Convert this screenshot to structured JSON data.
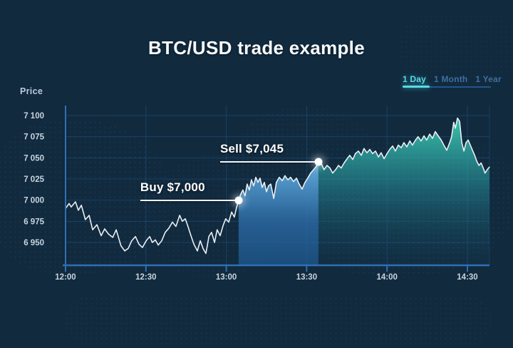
{
  "title": "BTC/USD trade example",
  "tabs": {
    "items": [
      {
        "label": "1 Day",
        "active": true
      },
      {
        "label": "1 Month",
        "active": false
      },
      {
        "label": "1 Year",
        "active": false
      }
    ]
  },
  "chart_data": {
    "type": "line",
    "title": "BTC/USD trade example",
    "y_axis_title": "Price",
    "pair": "BTC/USD",
    "x_ticks": [
      {
        "t": 0,
        "label": "12:00"
      },
      {
        "t": 30,
        "label": "12:30"
      },
      {
        "t": 60,
        "label": "13:00"
      },
      {
        "t": 90,
        "label": "13:30"
      },
      {
        "t": 120,
        "label": "14:00"
      },
      {
        "t": 150,
        "label": "14:30"
      }
    ],
    "y_ticks": [
      {
        "value": 7100,
        "label": "7 100"
      },
      {
        "value": 7075,
        "label": "7 075"
      },
      {
        "value": 7050,
        "label": "7 050"
      },
      {
        "value": 7025,
        "label": "7 025"
      },
      {
        "value": 7000,
        "label": "7 000"
      },
      {
        "value": 6975,
        "label": "6 975"
      },
      {
        "value": 6950,
        "label": "6 950"
      }
    ],
    "ylim": [
      6923,
      7115
    ],
    "xlim_minutes_after_12": [
      0,
      158.2
    ],
    "grid": true,
    "legend": "none",
    "markers": {
      "buy": {
        "t": 64.6,
        "price": 7000,
        "label": "Buy $7,000"
      },
      "sell": {
        "t": 94.4,
        "price": 7045,
        "label": "Sell $7,045"
      }
    },
    "series": [
      {
        "name": "BTC/USD price",
        "points_t_price": [
          [
            0,
            6990
          ],
          [
            1.3,
            6996
          ],
          [
            2.1,
            6992
          ],
          [
            3.7,
            6998
          ],
          [
            4.8,
            6988
          ],
          [
            5.9,
            6994
          ],
          [
            7.4,
            6977
          ],
          [
            8.8,
            6982
          ],
          [
            10.1,
            6965
          ],
          [
            11.7,
            6971
          ],
          [
            13.3,
            6958
          ],
          [
            14.6,
            6966
          ],
          [
            16,
            6960
          ],
          [
            17.6,
            6956
          ],
          [
            18.9,
            6965
          ],
          [
            20.7,
            6946
          ],
          [
            22.1,
            6940
          ],
          [
            23.4,
            6943
          ],
          [
            24.7,
            6952
          ],
          [
            26.1,
            6957
          ],
          [
            27.4,
            6948
          ],
          [
            28.7,
            6944
          ],
          [
            30.1,
            6952
          ],
          [
            31.4,
            6957
          ],
          [
            32.4,
            6950
          ],
          [
            33.5,
            6953
          ],
          [
            34.6,
            6947
          ],
          [
            35.9,
            6952
          ],
          [
            37.2,
            6962
          ],
          [
            38.6,
            6967
          ],
          [
            39.9,
            6974
          ],
          [
            41.2,
            6969
          ],
          [
            42.6,
            6982
          ],
          [
            43.6,
            6975
          ],
          [
            44.7,
            6978
          ],
          [
            45.7,
            6969
          ],
          [
            46.8,
            6958
          ],
          [
            47.9,
            6948
          ],
          [
            49.2,
            6940
          ],
          [
            50.3,
            6952
          ],
          [
            51.3,
            6943
          ],
          [
            52.4,
            6937
          ],
          [
            53.5,
            6957
          ],
          [
            54.5,
            6962
          ],
          [
            55.6,
            6950
          ],
          [
            56.6,
            6965
          ],
          [
            57.7,
            6958
          ],
          [
            58.8,
            6970
          ],
          [
            59.8,
            6978
          ],
          [
            60.9,
            6974
          ],
          [
            62,
            6986
          ],
          [
            63,
            6980
          ],
          [
            63.8,
            6991
          ],
          [
            64.6,
            7000
          ],
          [
            65.4,
            7007
          ],
          [
            66.2,
            7012
          ],
          [
            67,
            7005
          ],
          [
            67.8,
            7019
          ],
          [
            68.6,
            7012
          ],
          [
            69.4,
            7024
          ],
          [
            70.2,
            7017
          ],
          [
            71,
            7027
          ],
          [
            71.8,
            7021
          ],
          [
            72.6,
            7026
          ],
          [
            73.4,
            7015
          ],
          [
            74.2,
            7021
          ],
          [
            75,
            7010
          ],
          [
            75.8,
            7017
          ],
          [
            76.6,
            7019
          ],
          [
            77.7,
            7002
          ],
          [
            78.7,
            7021
          ],
          [
            79.8,
            7027
          ],
          [
            80.9,
            7023
          ],
          [
            81.9,
            7029
          ],
          [
            83,
            7024
          ],
          [
            84,
            7027
          ],
          [
            85.1,
            7022
          ],
          [
            86.2,
            7026
          ],
          [
            87.2,
            7019
          ],
          [
            88.3,
            7013
          ],
          [
            89.4,
            7021
          ],
          [
            90.4,
            7026
          ],
          [
            91.5,
            7032
          ],
          [
            92.6,
            7036
          ],
          [
            93.6,
            7040
          ],
          [
            94.4,
            7045
          ],
          [
            95.5,
            7043
          ],
          [
            96.5,
            7036
          ],
          [
            97.6,
            7041
          ],
          [
            98.7,
            7038
          ],
          [
            99.7,
            7032
          ],
          [
            100.8,
            7036
          ],
          [
            101.9,
            7041
          ],
          [
            102.9,
            7038
          ],
          [
            104,
            7044
          ],
          [
            105.1,
            7049
          ],
          [
            106.1,
            7053
          ],
          [
            107.2,
            7048
          ],
          [
            108.2,
            7055
          ],
          [
            109.3,
            7058
          ],
          [
            110.4,
            7053
          ],
          [
            111.4,
            7061
          ],
          [
            112.5,
            7056
          ],
          [
            113.6,
            7060
          ],
          [
            114.6,
            7055
          ],
          [
            115.7,
            7058
          ],
          [
            116.8,
            7051
          ],
          [
            117.8,
            7056
          ],
          [
            118.9,
            7049
          ],
          [
            120,
            7055
          ],
          [
            121,
            7060
          ],
          [
            122.1,
            7064
          ],
          [
            123.1,
            7058
          ],
          [
            124.2,
            7065
          ],
          [
            125.3,
            7062
          ],
          [
            126.3,
            7068
          ],
          [
            127.4,
            7063
          ],
          [
            128.5,
            7070
          ],
          [
            129.5,
            7065
          ],
          [
            130.6,
            7071
          ],
          [
            131.6,
            7075
          ],
          [
            132.7,
            7070
          ],
          [
            133.8,
            7076
          ],
          [
            134.8,
            7071
          ],
          [
            135.9,
            7078
          ],
          [
            137,
            7073
          ],
          [
            138,
            7081
          ],
          [
            139.1,
            7076
          ],
          [
            140.2,
            7071
          ],
          [
            141.2,
            7065
          ],
          [
            142.3,
            7059
          ],
          [
            143.4,
            7068
          ],
          [
            144.1,
            7075
          ],
          [
            144.9,
            7092
          ],
          [
            145.5,
            7085
          ],
          [
            146.3,
            7097
          ],
          [
            147.1,
            7093
          ],
          [
            147.9,
            7068
          ],
          [
            148.7,
            7058
          ],
          [
            149.5,
            7068
          ],
          [
            150.3,
            7071
          ],
          [
            151.1,
            7065
          ],
          [
            151.9,
            7059
          ],
          [
            152.7,
            7053
          ],
          [
            153.5,
            7046
          ],
          [
            154.3,
            7041
          ],
          [
            155.1,
            7044
          ],
          [
            155.9,
            7038
          ],
          [
            156.6,
            7032
          ],
          [
            157.4,
            7036
          ],
          [
            158.2,
            7039
          ]
        ]
      }
    ],
    "colors": {
      "background": "#112a3e",
      "line": "#eaeff4",
      "fill_hold_top": "#62aee0",
      "fill_hold_bottom": "#1d5c94",
      "fill_profit_top": "#3ed2b4",
      "fill_profit_bottom": "#15445e",
      "grid": "#2b65a3",
      "axis": "#2f6fb4",
      "tick_text": "#c9d4de",
      "tab_active": "#55dde8",
      "tab_inactive": "#3e6f9e",
      "marker": "#ffffff"
    }
  }
}
